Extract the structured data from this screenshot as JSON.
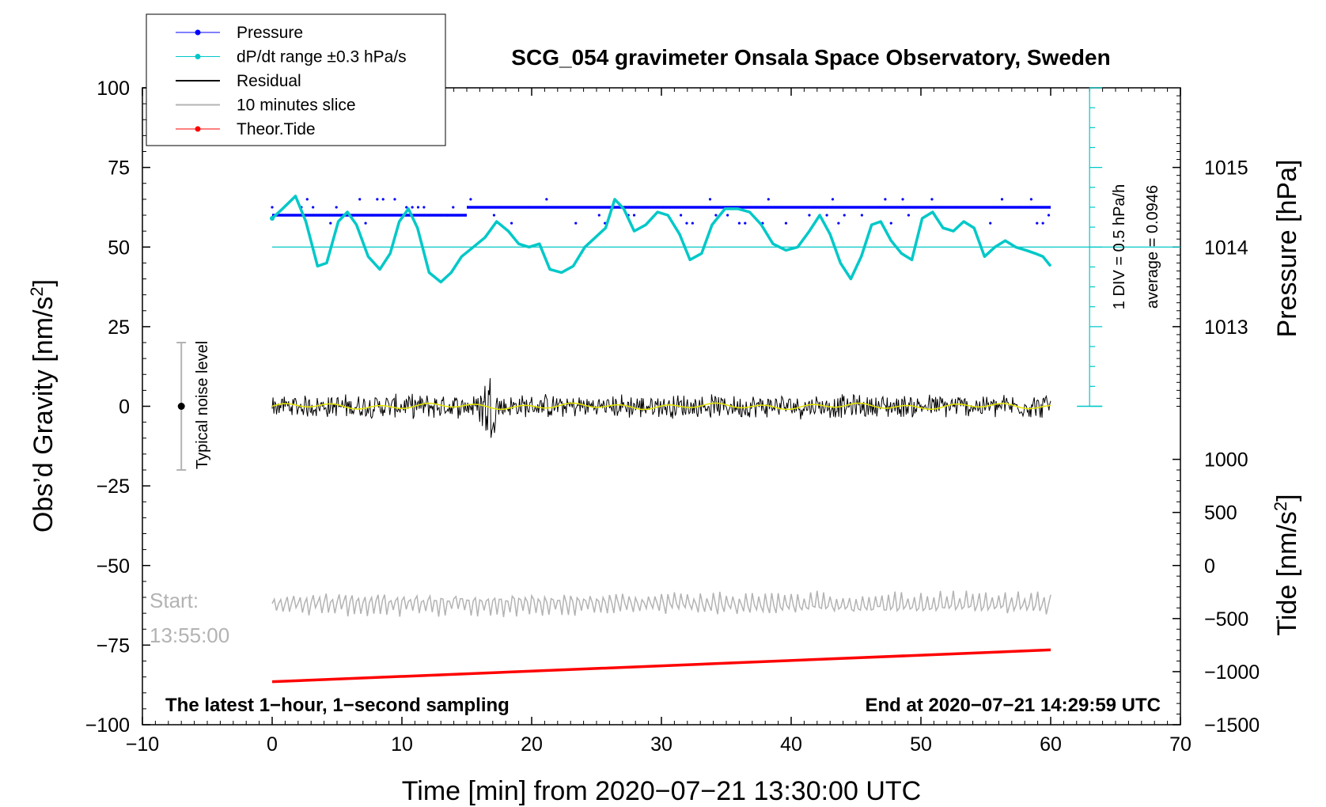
{
  "chart_data": {
    "type": "line",
    "title": "SCG_054 gravimeter Onsala Space Observatory, Sweden",
    "xlabel": "Time [min] from 2020−07−21 13:30:00 UTC",
    "ylabel": "Obs’d Gravity [nm/s²]",
    "ylabel_main": "Obs’d Gravity [nm/s",
    "ylabel_sup": "2",
    "ylabel_end": "]",
    "xlim": [
      -10,
      70
    ],
    "ylim": [
      -100,
      100
    ],
    "x_ticks": [
      -10,
      0,
      10,
      20,
      30,
      40,
      50,
      60,
      70
    ],
    "x_tick_labels": [
      "−10",
      "0",
      "10",
      "20",
      "30",
      "40",
      "50",
      "60",
      "70"
    ],
    "y_ticks": [
      -100,
      -75,
      -50,
      -25,
      0,
      25,
      50,
      75,
      100
    ],
    "y_tick_labels": [
      "−100",
      "−75",
      "−50",
      "−25",
      "0",
      "25",
      "50",
      "75",
      "100"
    ],
    "pressure_axis": {
      "label": "Pressure [hPa]",
      "ticks": [
        1013,
        1014,
        1015
      ],
      "tick_labels": [
        "1013",
        "1014",
        "1015"
      ],
      "gravity_at_1014": 50,
      "gravity_per_hPa": 25
    },
    "tide_axis": {
      "label": "Tide [nm/s²]",
      "label_main": "Tide [nm/s",
      "label_sup": "2",
      "label_end": "]",
      "ticks": [
        1000,
        500,
        0,
        -500,
        -1000,
        -1500
      ],
      "tick_labels": [
        "1000",
        "500",
        "0",
        "−500",
        "−1000",
        "−1500"
      ],
      "gravity_at_0": -50,
      "gravity_per_nm": 0.03333
    },
    "dpdt_scale": {
      "label": "1 DIV = 0.5 hPa/h",
      "average_label": "average = 0.0946",
      "x_position_min": 63
    },
    "legend": [
      {
        "label": "Pressure",
        "color": "#0000ff",
        "marker": true
      },
      {
        "label": "dP/dt range ±0.3 hPa/s",
        "color": "#00c8c8",
        "marker": true
      },
      {
        "label": "Residual",
        "color": "#000000",
        "marker": false
      },
      {
        "label": "10 minutes slice",
        "color": "#b3b3b3",
        "marker": false
      },
      {
        "label": "Theor.Tide",
        "color": "#ff0000",
        "marker": true
      }
    ],
    "noise_level": {
      "label": "Typical noise level",
      "x": -7,
      "center": 0,
      "half_range": 20
    },
    "series": [
      {
        "name": "Pressure",
        "color": "#0000ff",
        "levels_gravity": [
          60,
          62.5
        ],
        "segments_min": [
          [
            0,
            15,
            60
          ],
          [
            15,
            60,
            62.5
          ]
        ],
        "scatter_min": [
          1,
          3,
          5,
          6,
          9,
          12,
          15,
          17,
          18,
          21,
          23,
          25,
          26,
          28,
          30,
          32,
          33,
          35,
          37,
          38,
          40,
          42,
          44,
          47,
          49,
          51,
          53,
          55,
          57,
          59
        ],
        "scatter_levels": [
          57.5,
          60,
          62.5,
          65
        ]
      },
      {
        "name": "dP/dt range ±0.3 hPa/s",
        "color": "#00c8c8",
        "x": [
          0,
          0.8,
          1.8,
          2.6,
          3.5,
          4.2,
          5.1,
          5.8,
          6.5,
          7.4,
          8.3,
          9.1,
          9.8,
          10.5,
          11.2,
          12.1,
          13.0,
          13.8,
          14.6,
          15.5,
          16.4,
          17.3,
          18.2,
          19.0,
          19.8,
          20.6,
          21.4,
          22.3,
          23.2,
          24.1,
          24.9,
          25.7,
          26.4,
          27.1,
          27.9,
          28.8,
          29.7,
          30.5,
          31.4,
          32.2,
          33.1,
          33.9,
          34.9,
          35.9,
          36.8,
          37.7,
          38.6,
          39.6,
          40.5,
          41.4,
          42.2,
          43.0,
          43.8,
          44.6,
          45.4,
          46.2,
          46.9,
          47.7,
          48.5,
          49.3,
          50.1,
          50.9,
          51.7,
          52.5,
          53.3,
          54.1,
          54.9,
          55.7,
          56.5,
          57.3,
          58.1,
          58.8,
          59.4,
          60.0
        ],
        "values": [
          59,
          62,
          66,
          58,
          44,
          45,
          58,
          61,
          57,
          47,
          43,
          48,
          58,
          62,
          56,
          42,
          39,
          42,
          47,
          50,
          53,
          58,
          55,
          51,
          50,
          51,
          43,
          42,
          44,
          50,
          53,
          56,
          65,
          62,
          55,
          57,
          61,
          60,
          54,
          46,
          48,
          57,
          62,
          62,
          61,
          57,
          51,
          49,
          50,
          55,
          60,
          54,
          45,
          40,
          47,
          57,
          58,
          52,
          48,
          46,
          59,
          61,
          56,
          55,
          58,
          56,
          47,
          50,
          52,
          50,
          49,
          48,
          47,
          44
        ]
      },
      {
        "name": "Residual",
        "color": "#000000",
        "baseline": 0,
        "amplitude": 3.5,
        "burst_center_min": 16.7,
        "burst_amplitude": 8
      },
      {
        "name": "10 minutes slice",
        "color": "#b3b3b3",
        "baseline": -62,
        "amplitude": 3.5,
        "start_label": "Start:",
        "start_time": "13:55:00"
      },
      {
        "name": "Theor.Tide",
        "color": "#ff0000",
        "x": [
          0,
          60
        ],
        "values": [
          -86.5,
          -76.5
        ]
      }
    ],
    "footer_left": "The latest 1−hour, 1−second sampling",
    "footer_right": "End at 2020−07−21 14:29:59 UTC"
  }
}
